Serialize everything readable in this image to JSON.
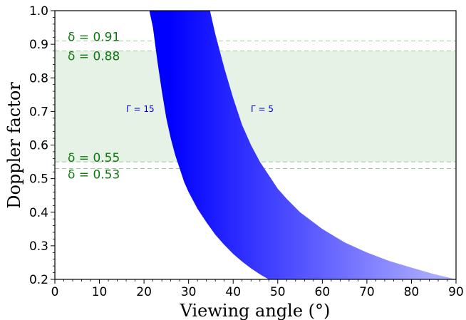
{
  "chart_data": {
    "type": "area",
    "xlabel": "Viewing angle (°)",
    "ylabel": "Doppler factor",
    "xlim": [
      0,
      90
    ],
    "ylim": [
      0.2,
      1.0
    ],
    "xticks": [
      0,
      10,
      20,
      30,
      40,
      50,
      60,
      70,
      80,
      90
    ],
    "yticks": [
      0.2,
      0.3,
      0.4,
      0.5,
      0.6,
      0.7,
      0.8,
      0.9,
      1.0
    ],
    "xtick_labels": [
      "0",
      "10",
      "20",
      "30",
      "40",
      "50",
      "60",
      "70",
      "80",
      "90"
    ],
    "ytick_labels": [
      "0.2",
      "0.3",
      "0.4",
      "0.5",
      "0.6",
      "0.7",
      "0.8",
      "0.9",
      "1.0"
    ],
    "grid": false,
    "colors": {
      "band_fill": "#e5f2e5",
      "hline": "#99cc99",
      "delta_text": "#117711",
      "gradient_dark": "#0000ff",
      "gradient_light": "#aaaaff",
      "curve_text": "#0000dd"
    },
    "hlines": [
      {
        "y": 0.91,
        "label": "δ = 0.91"
      },
      {
        "y": 0.88,
        "label": "δ = 0.88"
      },
      {
        "y": 0.55,
        "label": "δ = 0.55"
      },
      {
        "y": 0.53,
        "label": "δ = 0.53"
      }
    ],
    "shaded_band": [
      0.55,
      0.88
    ],
    "series": [
      {
        "label": "Γ = 15",
        "points": [
          [
            21.2,
            1.0
          ],
          [
            22.0,
            0.95
          ],
          [
            23.0,
            0.85
          ],
          [
            24.0,
            0.76
          ],
          [
            25.0,
            0.68
          ],
          [
            26.0,
            0.62
          ],
          [
            27.0,
            0.57
          ],
          [
            28.0,
            0.53
          ],
          [
            29.0,
            0.49
          ],
          [
            30.0,
            0.46
          ],
          [
            32.0,
            0.41
          ],
          [
            34.0,
            0.37
          ],
          [
            36.0,
            0.333
          ],
          [
            38.0,
            0.303
          ],
          [
            40.0,
            0.276
          ],
          [
            42.0,
            0.253
          ],
          [
            44.0,
            0.233
          ],
          [
            46.0,
            0.215
          ],
          [
            48.0,
            0.2
          ]
        ]
      },
      {
        "label": "Γ = 5",
        "points": [
          [
            34.8,
            1.0
          ],
          [
            36.0,
            0.93
          ],
          [
            38.0,
            0.83
          ],
          [
            40.0,
            0.74
          ],
          [
            42.0,
            0.66
          ],
          [
            44.0,
            0.6
          ],
          [
            46.0,
            0.55
          ],
          [
            48.0,
            0.51
          ],
          [
            50.0,
            0.47
          ],
          [
            52.0,
            0.44
          ],
          [
            55.0,
            0.4
          ],
          [
            60.0,
            0.35
          ],
          [
            65.0,
            0.31
          ],
          [
            70.0,
            0.28
          ],
          [
            75.0,
            0.255
          ],
          [
            80.0,
            0.235
          ],
          [
            85.0,
            0.216
          ],
          [
            90.0,
            0.2
          ]
        ]
      }
    ]
  }
}
